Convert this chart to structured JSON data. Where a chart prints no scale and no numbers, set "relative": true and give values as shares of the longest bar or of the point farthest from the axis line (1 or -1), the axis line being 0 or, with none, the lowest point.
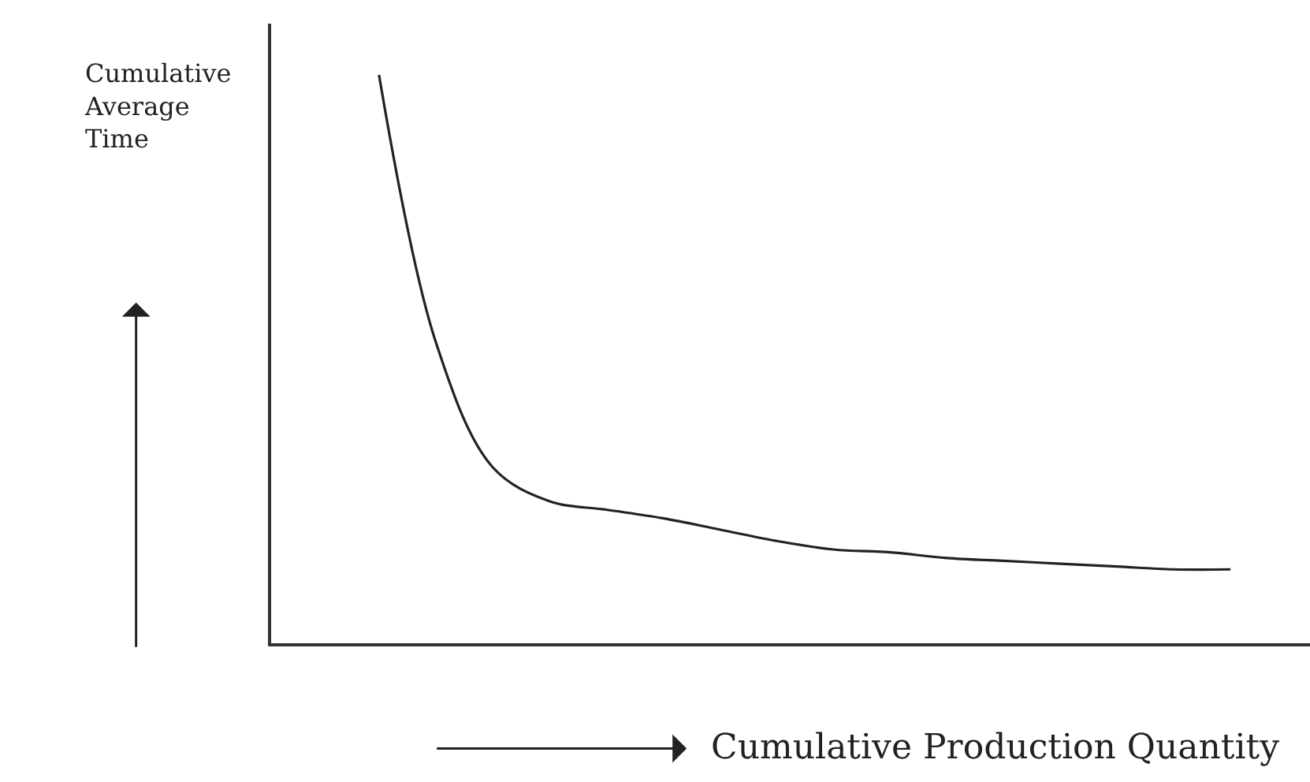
{
  "chart_data": {
    "type": "line",
    "relative": true,
    "xlabel": "Cumulative Production Quantity",
    "ylabel": "Cumulative\nAverage\nTime",
    "categories": [
      null,
      null,
      null,
      null,
      null,
      null,
      null,
      null,
      null,
      null,
      null,
      null,
      null,
      null,
      null,
      null
    ],
    "series": [
      {
        "color": "#222222",
        "values": [
          1.0,
          0.53,
          0.31,
          0.25,
          0.235,
          0.22,
          0.2,
          0.18,
          0.165,
          0.16,
          0.15,
          0.145,
          0.14,
          0.135,
          0.13,
          0.13
        ]
      }
    ],
    "marker": "none",
    "line_style": "solid"
  }
}
